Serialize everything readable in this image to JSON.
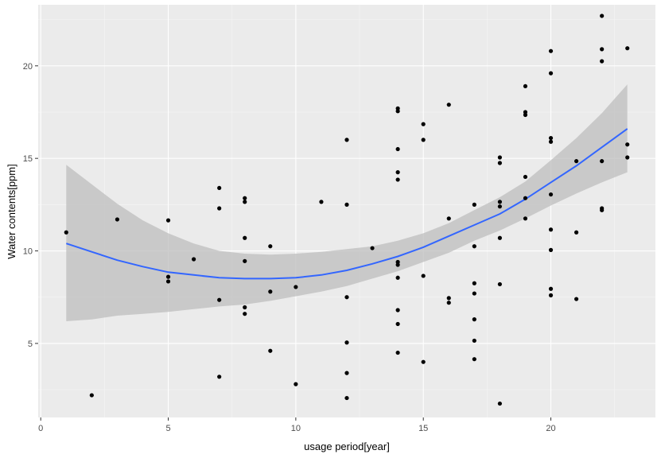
{
  "chart_data": {
    "type": "scatter",
    "title": "",
    "xlabel": "usage period[year]",
    "ylabel": "Water contents[ppm]",
    "xlim": [
      -0.1,
      24.1
    ],
    "ylim": [
      1.0,
      23.3
    ],
    "x_ticks": [
      0,
      5,
      10,
      15,
      20
    ],
    "y_ticks": [
      5,
      10,
      15,
      20
    ],
    "grid": true,
    "legend": "none",
    "colors": {
      "panel_background": "#EBEBEB",
      "grid_major": "#FFFFFF",
      "grid_minor": "#F5F5F5",
      "points": "#000000",
      "smooth_line": "#3366FF",
      "confidence_band": "#BDBDBD"
    },
    "points": [
      {
        "x": 1,
        "y": 11.0
      },
      {
        "x": 2,
        "y": 2.2
      },
      {
        "x": 3,
        "y": 11.7
      },
      {
        "x": 5,
        "y": 11.65
      },
      {
        "x": 5,
        "y": 8.6
      },
      {
        "x": 5,
        "y": 8.35
      },
      {
        "x": 6,
        "y": 9.55
      },
      {
        "x": 7,
        "y": 13.4
      },
      {
        "x": 7,
        "y": 12.3
      },
      {
        "x": 7,
        "y": 7.35
      },
      {
        "x": 7,
        "y": 3.2
      },
      {
        "x": 8,
        "y": 12.85
      },
      {
        "x": 8,
        "y": 12.65
      },
      {
        "x": 8,
        "y": 10.7
      },
      {
        "x": 8,
        "y": 9.45
      },
      {
        "x": 8,
        "y": 6.95
      },
      {
        "x": 8,
        "y": 6.6
      },
      {
        "x": 9,
        "y": 10.25
      },
      {
        "x": 9,
        "y": 7.8
      },
      {
        "x": 9,
        "y": 4.6
      },
      {
        "x": 10,
        "y": 8.05
      },
      {
        "x": 10,
        "y": 2.8
      },
      {
        "x": 11,
        "y": 12.65
      },
      {
        "x": 12,
        "y": 16.0
      },
      {
        "x": 12,
        "y": 12.5
      },
      {
        "x": 12,
        "y": 7.5
      },
      {
        "x": 12,
        "y": 5.05
      },
      {
        "x": 12,
        "y": 3.4
      },
      {
        "x": 12,
        "y": 2.05
      },
      {
        "x": 13,
        "y": 10.15
      },
      {
        "x": 14,
        "y": 17.7
      },
      {
        "x": 14,
        "y": 17.55
      },
      {
        "x": 14,
        "y": 15.5
      },
      {
        "x": 14,
        "y": 14.25
      },
      {
        "x": 14,
        "y": 13.85
      },
      {
        "x": 14,
        "y": 9.4
      },
      {
        "x": 14,
        "y": 9.25
      },
      {
        "x": 14,
        "y": 8.55
      },
      {
        "x": 14,
        "y": 6.8
      },
      {
        "x": 14,
        "y": 6.05
      },
      {
        "x": 14,
        "y": 4.5
      },
      {
        "x": 15,
        "y": 16.85
      },
      {
        "x": 15,
        "y": 16.0
      },
      {
        "x": 15,
        "y": 8.65
      },
      {
        "x": 15,
        "y": 4.0
      },
      {
        "x": 16,
        "y": 17.9
      },
      {
        "x": 16,
        "y": 11.75
      },
      {
        "x": 16,
        "y": 7.45
      },
      {
        "x": 16,
        "y": 7.2
      },
      {
        "x": 17,
        "y": 12.5
      },
      {
        "x": 17,
        "y": 10.25
      },
      {
        "x": 17,
        "y": 8.25
      },
      {
        "x": 17,
        "y": 7.7
      },
      {
        "x": 17,
        "y": 6.3
      },
      {
        "x": 17,
        "y": 5.15
      },
      {
        "x": 17,
        "y": 4.15
      },
      {
        "x": 18,
        "y": 15.05
      },
      {
        "x": 18,
        "y": 14.75
      },
      {
        "x": 18,
        "y": 12.65
      },
      {
        "x": 18,
        "y": 12.4
      },
      {
        "x": 18,
        "y": 10.7
      },
      {
        "x": 18,
        "y": 8.2
      },
      {
        "x": 18,
        "y": 1.75
      },
      {
        "x": 19,
        "y": 18.9
      },
      {
        "x": 19,
        "y": 17.5
      },
      {
        "x": 19,
        "y": 17.35
      },
      {
        "x": 19,
        "y": 14.0
      },
      {
        "x": 19,
        "y": 12.85
      },
      {
        "x": 19,
        "y": 11.75
      },
      {
        "x": 20,
        "y": 20.8
      },
      {
        "x": 20,
        "y": 19.6
      },
      {
        "x": 20,
        "y": 16.1
      },
      {
        "x": 20,
        "y": 15.9
      },
      {
        "x": 20,
        "y": 13.05
      },
      {
        "x": 20,
        "y": 11.15
      },
      {
        "x": 20,
        "y": 10.05
      },
      {
        "x": 20,
        "y": 7.95
      },
      {
        "x": 20,
        "y": 7.6
      },
      {
        "x": 21,
        "y": 14.85
      },
      {
        "x": 21,
        "y": 11.0
      },
      {
        "x": 21,
        "y": 7.4
      },
      {
        "x": 22,
        "y": 22.7
      },
      {
        "x": 22,
        "y": 20.9
      },
      {
        "x": 22,
        "y": 20.25
      },
      {
        "x": 22,
        "y": 14.85
      },
      {
        "x": 22,
        "y": 12.3
      },
      {
        "x": 22,
        "y": 12.2
      },
      {
        "x": 23,
        "y": 20.95
      },
      {
        "x": 23,
        "y": 15.75
      },
      {
        "x": 23,
        "y": 15.05
      }
    ],
    "smooth": {
      "method": "loess",
      "x": [
        1,
        2,
        3,
        4,
        5,
        6,
        7,
        8,
        9,
        10,
        11,
        12,
        13,
        14,
        15,
        16,
        17,
        18,
        19,
        20,
        21,
        22,
        23
      ],
      "y": [
        10.4,
        9.95,
        9.5,
        9.15,
        8.85,
        8.7,
        8.55,
        8.5,
        8.5,
        8.55,
        8.7,
        8.95,
        9.3,
        9.7,
        10.2,
        10.8,
        11.4,
        12.0,
        12.8,
        13.7,
        14.6,
        15.6,
        16.6
      ],
      "ymin": [
        6.2,
        6.3,
        6.5,
        6.6,
        6.7,
        6.85,
        7.0,
        7.1,
        7.3,
        7.55,
        7.8,
        8.1,
        8.5,
        8.9,
        9.4,
        9.9,
        10.55,
        11.1,
        11.75,
        12.45,
        13.1,
        13.7,
        14.25
      ],
      "ymax": [
        14.65,
        13.6,
        12.55,
        11.65,
        10.95,
        10.4,
        10.0,
        9.85,
        9.8,
        9.85,
        9.95,
        10.1,
        10.25,
        10.55,
        10.95,
        11.5,
        12.2,
        12.9,
        13.75,
        14.9,
        16.1,
        17.45,
        19.0
      ]
    }
  }
}
